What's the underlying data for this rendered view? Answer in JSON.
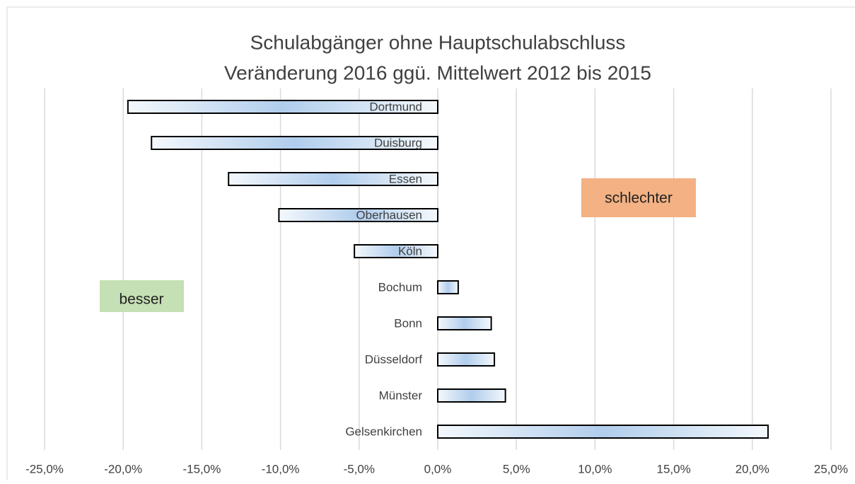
{
  "chart_data": {
    "type": "bar",
    "orientation": "horizontal",
    "title": [
      "Schulabgänger ohne Hauptschulabschluss",
      "Veränderung 2016 ggü. Mittelwert 2012 bis 2015"
    ],
    "categories": [
      "Dortmund",
      "Duisburg",
      "Essen",
      "Oberhausen",
      "Köln",
      "Bochum",
      "Bonn",
      "Düsseldorf",
      "Münster",
      "Gelsenkirchen"
    ],
    "values": [
      -19.7,
      -18.2,
      -13.3,
      -10.1,
      -5.3,
      1.3,
      3.4,
      3.6,
      4.3,
      21.0
    ],
    "color": "#b0cdec",
    "xlim": [
      -25,
      25
    ],
    "xticks": [
      {
        "value": -25,
        "label": "-25,0%"
      },
      {
        "value": -20,
        "label": "-20,0%"
      },
      {
        "value": -15,
        "label": "-15,0%"
      },
      {
        "value": -10,
        "label": "-10,0%"
      },
      {
        "value": -5,
        "label": "-5,0%"
      },
      {
        "value": 0,
        "label": "0,0%"
      },
      {
        "value": 5,
        "label": "5,0%"
      },
      {
        "value": 10,
        "label": "10,0%"
      },
      {
        "value": 15,
        "label": "15,0%"
      },
      {
        "value": 20,
        "label": "20,0%"
      },
      {
        "value": 25,
        "label": "25,0%"
      }
    ],
    "grid": true,
    "annotations": [
      "schlechter",
      "besser"
    ]
  }
}
